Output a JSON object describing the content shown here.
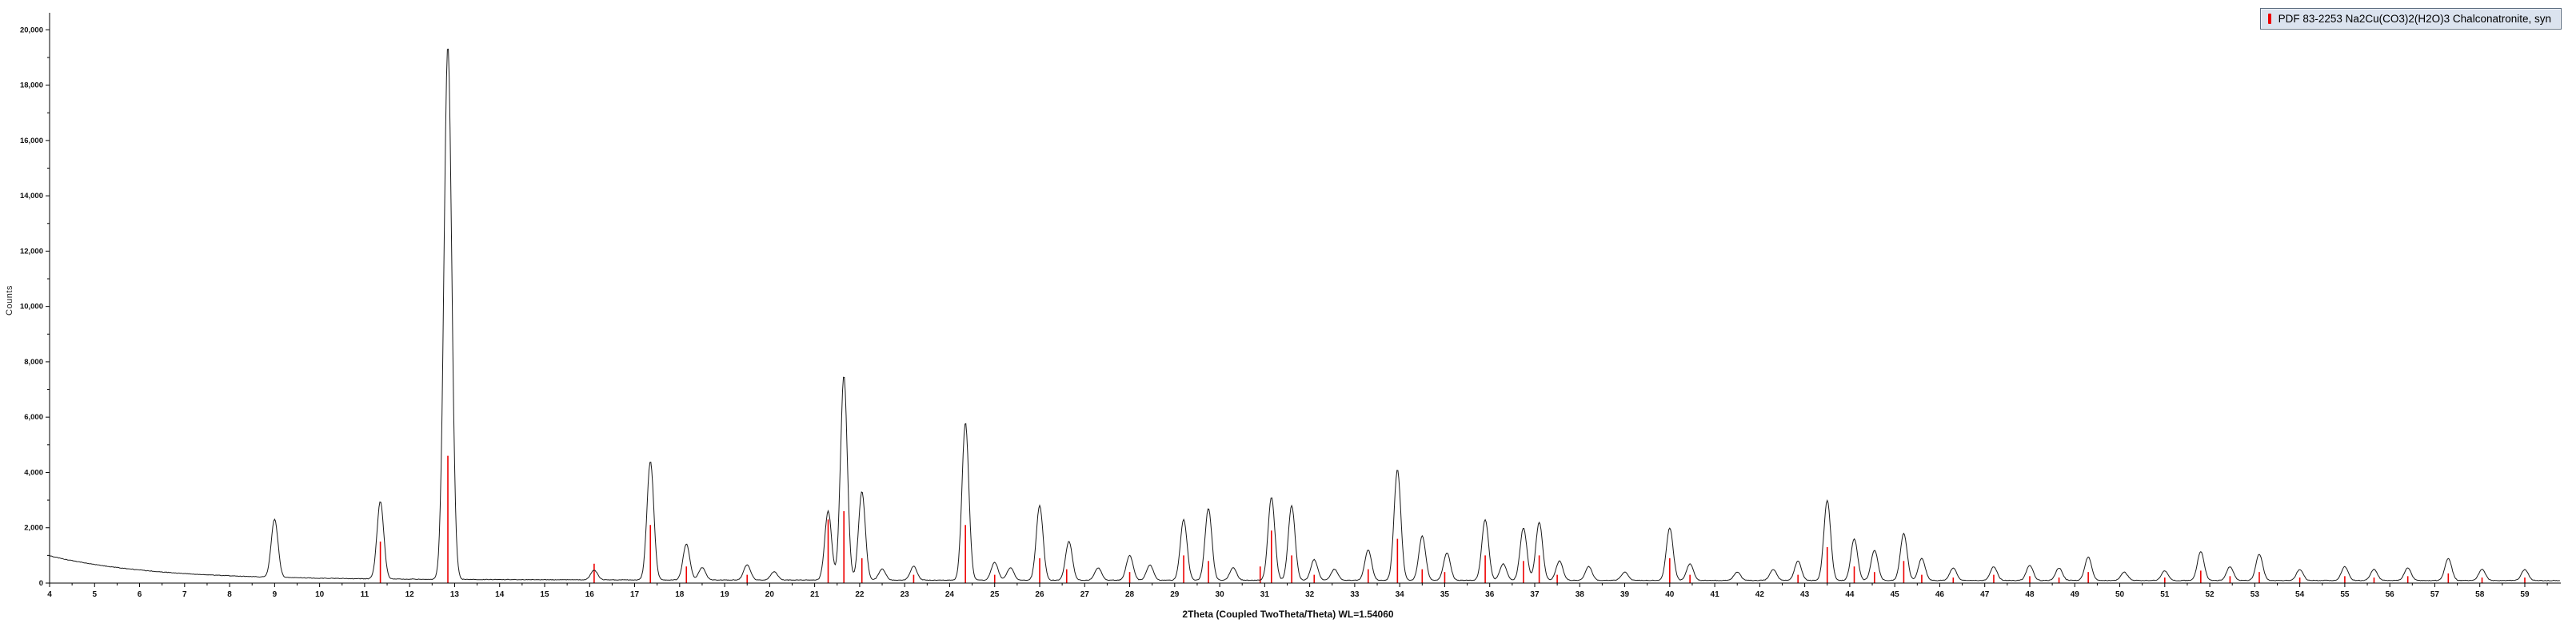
{
  "legend": {
    "label": "PDF 83-2253 Na2Cu(CO3)2(H2O)3 Chalconatronite, syn",
    "marker_color": "#ee0000",
    "marker_icon": "reference-stick-icon"
  },
  "chart_data": {
    "type": "line",
    "title": "",
    "xlabel": "2Theta (Coupled TwoTheta/Theta) WL=1.54060",
    "ylabel": "Counts",
    "xlim": [
      4,
      59.8
    ],
    "ylim": [
      0,
      20500
    ],
    "x_tick_step": 1,
    "x_minor_tick_step": 0.5,
    "y_tick_step": 2000,
    "y_minor_tick_step": 1000,
    "y_ticks": [
      0,
      2000,
      4000,
      6000,
      8000,
      10000,
      12000,
      14000,
      16000,
      18000,
      20000
    ],
    "grid": false,
    "legend_position": "top-right",
    "trace_color": "#1a1a1a",
    "reference_color": "#ee0000",
    "background_curve": {
      "offset": 90,
      "slow_amp": 45,
      "slow_decay": 20,
      "fast_amp": 850,
      "fast_decay": 2.2,
      "noise": 11
    },
    "peak_default_width": 0.075,
    "peaks": [
      [
        9.0,
        2100
      ],
      [
        11.35,
        2800
      ],
      [
        12.85,
        19300,
        0.085
      ],
      [
        16.1,
        350
      ],
      [
        17.35,
        4300
      ],
      [
        18.15,
        1300
      ],
      [
        18.5,
        450
      ],
      [
        19.5,
        550
      ],
      [
        20.1,
        300
      ],
      [
        21.3,
        2500
      ],
      [
        21.65,
        7400
      ],
      [
        22.05,
        3200
      ],
      [
        22.5,
        400
      ],
      [
        23.2,
        500
      ],
      [
        24.35,
        5700
      ],
      [
        25.0,
        650
      ],
      [
        25.35,
        450
      ],
      [
        26.0,
        2700
      ],
      [
        26.65,
        1400
      ],
      [
        27.3,
        450
      ],
      [
        28.0,
        900
      ],
      [
        28.45,
        550
      ],
      [
        29.2,
        2200
      ],
      [
        29.75,
        2600
      ],
      [
        30.3,
        450
      ],
      [
        31.15,
        3000
      ],
      [
        31.6,
        2700
      ],
      [
        32.1,
        750
      ],
      [
        32.55,
        400
      ],
      [
        33.3,
        1100
      ],
      [
        33.95,
        4000
      ],
      [
        34.5,
        1600
      ],
      [
        35.05,
        1000
      ],
      [
        35.9,
        2200
      ],
      [
        36.3,
        600
      ],
      [
        36.75,
        1900
      ],
      [
        37.1,
        2100
      ],
      [
        37.55,
        700
      ],
      [
        38.2,
        500
      ],
      [
        39.0,
        300
      ],
      [
        40.0,
        1900
      ],
      [
        40.45,
        600
      ],
      [
        41.5,
        300
      ],
      [
        42.3,
        400
      ],
      [
        42.85,
        700
      ],
      [
        43.5,
        2900
      ],
      [
        44.1,
        1500
      ],
      [
        44.55,
        1100
      ],
      [
        45.2,
        1700
      ],
      [
        45.6,
        800
      ],
      [
        46.3,
        450
      ],
      [
        47.2,
        500
      ],
      [
        48.0,
        550
      ],
      [
        48.65,
        450
      ],
      [
        49.3,
        850
      ],
      [
        50.1,
        300
      ],
      [
        51.0,
        350
      ],
      [
        51.8,
        1050
      ],
      [
        52.45,
        500
      ],
      [
        53.1,
        950
      ],
      [
        54.0,
        400
      ],
      [
        55.0,
        500
      ],
      [
        55.65,
        400
      ],
      [
        56.4,
        450
      ],
      [
        57.3,
        800
      ],
      [
        58.05,
        400
      ],
      [
        59.0,
        400
      ]
    ],
    "reference_sticks": [
      [
        11.35,
        1500
      ],
      [
        12.85,
        4600
      ],
      [
        16.1,
        700
      ],
      [
        17.35,
        2100
      ],
      [
        18.15,
        600
      ],
      [
        19.5,
        300
      ],
      [
        21.3,
        2300
      ],
      [
        21.65,
        2600
      ],
      [
        22.05,
        900
      ],
      [
        23.2,
        300
      ],
      [
        24.35,
        2100
      ],
      [
        25.0,
        300
      ],
      [
        26.0,
        900
      ],
      [
        26.6,
        500
      ],
      [
        28.0,
        400
      ],
      [
        29.2,
        1000
      ],
      [
        29.75,
        800
      ],
      [
        30.9,
        600
      ],
      [
        31.15,
        1900
      ],
      [
        31.6,
        1000
      ],
      [
        32.1,
        300
      ],
      [
        33.3,
        500
      ],
      [
        33.95,
        1600
      ],
      [
        34.5,
        500
      ],
      [
        35.0,
        400
      ],
      [
        35.9,
        1000
      ],
      [
        36.75,
        800
      ],
      [
        37.1,
        1000
      ],
      [
        37.5,
        300
      ],
      [
        40.0,
        900
      ],
      [
        40.45,
        300
      ],
      [
        42.85,
        300
      ],
      [
        43.5,
        1300
      ],
      [
        44.1,
        600
      ],
      [
        44.55,
        400
      ],
      [
        45.2,
        800
      ],
      [
        45.6,
        300
      ],
      [
        46.3,
        200
      ],
      [
        47.2,
        300
      ],
      [
        48.0,
        250
      ],
      [
        48.65,
        200
      ],
      [
        49.3,
        400
      ],
      [
        51.0,
        200
      ],
      [
        51.8,
        450
      ],
      [
        52.45,
        250
      ],
      [
        53.1,
        400
      ],
      [
        54.0,
        200
      ],
      [
        55.0,
        250
      ],
      [
        55.65,
        200
      ],
      [
        56.4,
        250
      ],
      [
        57.3,
        350
      ],
      [
        58.05,
        200
      ],
      [
        59.0,
        200
      ]
    ]
  }
}
